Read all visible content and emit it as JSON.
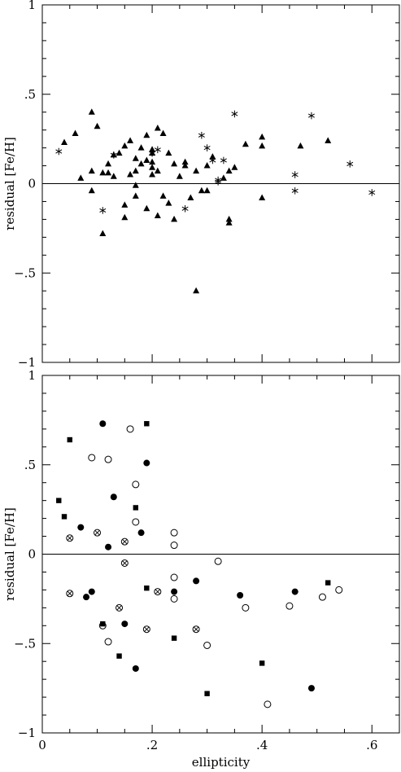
{
  "chart_data": [
    {
      "type": "scatter",
      "panel": "top",
      "xlabel": "",
      "ylabel": "residual [Fe/H]",
      "xlim": [
        0,
        0.65
      ],
      "ylim": [
        -1,
        1
      ],
      "x_ticks": [
        0,
        0.2,
        0.4,
        0.6
      ],
      "y_ticks": [
        -1,
        -0.5,
        0,
        0.5,
        1
      ],
      "x_tick_labels_shown": false,
      "reference_line_y": 0,
      "series": [
        {
          "marker": "filled-triangle",
          "points": [
            [
              0.04,
              0.23
            ],
            [
              0.06,
              0.28
            ],
            [
              0.07,
              0.03
            ],
            [
              0.09,
              0.4
            ],
            [
              0.09,
              0.07
            ],
            [
              0.09,
              -0.04
            ],
            [
              0.1,
              0.32
            ],
            [
              0.11,
              0.06
            ],
            [
              0.11,
              -0.28
            ],
            [
              0.12,
              0.11
            ],
            [
              0.12,
              0.06
            ],
            [
              0.13,
              0.04
            ],
            [
              0.13,
              0.16
            ],
            [
              0.14,
              0.17
            ],
            [
              0.15,
              0.21
            ],
            [
              0.15,
              -0.12
            ],
            [
              0.15,
              -0.19
            ],
            [
              0.16,
              0.24
            ],
            [
              0.16,
              0.05
            ],
            [
              0.17,
              0.14
            ],
            [
              0.17,
              0.07
            ],
            [
              0.17,
              -0.01
            ],
            [
              0.17,
              -0.07
            ],
            [
              0.18,
              0.2
            ],
            [
              0.18,
              0.11
            ],
            [
              0.19,
              0.27
            ],
            [
              0.19,
              0.13
            ],
            [
              0.19,
              -0.14
            ],
            [
              0.2,
              0.17
            ],
            [
              0.2,
              0.12
            ],
            [
              0.2,
              0.09
            ],
            [
              0.2,
              0.05
            ],
            [
              0.2,
              0.19
            ],
            [
              0.21,
              0.31
            ],
            [
              0.21,
              0.07
            ],
            [
              0.21,
              -0.18
            ],
            [
              0.22,
              0.28
            ],
            [
              0.22,
              -0.07
            ],
            [
              0.23,
              0.17
            ],
            [
              0.23,
              -0.11
            ],
            [
              0.24,
              0.11
            ],
            [
              0.24,
              -0.2
            ],
            [
              0.25,
              0.04
            ],
            [
              0.26,
              0.12
            ],
            [
              0.26,
              0.1
            ],
            [
              0.27,
              -0.08
            ],
            [
              0.28,
              0.07
            ],
            [
              0.28,
              -0.6
            ],
            [
              0.29,
              -0.04
            ],
            [
              0.3,
              0.1
            ],
            [
              0.3,
              -0.04
            ],
            [
              0.31,
              0.15
            ],
            [
              0.33,
              0.03
            ],
            [
              0.34,
              0.07
            ],
            [
              0.34,
              -0.2
            ],
            [
              0.34,
              -0.22
            ],
            [
              0.35,
              0.09
            ],
            [
              0.37,
              0.22
            ],
            [
              0.4,
              0.26
            ],
            [
              0.4,
              0.21
            ],
            [
              0.4,
              -0.08
            ],
            [
              0.47,
              0.21
            ],
            [
              0.52,
              0.24
            ]
          ]
        },
        {
          "marker": "asterisk",
          "points": [
            [
              0.03,
              0.18
            ],
            [
              0.11,
              -0.15
            ],
            [
              0.13,
              0.16
            ],
            [
              0.2,
              0.17
            ],
            [
              0.21,
              0.19
            ],
            [
              0.26,
              -0.14
            ],
            [
              0.29,
              0.27
            ],
            [
              0.3,
              0.2
            ],
            [
              0.31,
              0.13
            ],
            [
              0.32,
              0.01
            ],
            [
              0.32,
              0.02
            ],
            [
              0.33,
              0.13
            ],
            [
              0.35,
              0.39
            ],
            [
              0.46,
              0.05
            ],
            [
              0.46,
              -0.04
            ],
            [
              0.49,
              0.38
            ],
            [
              0.56,
              0.11
            ],
            [
              0.6,
              -0.05
            ]
          ]
        }
      ]
    },
    {
      "type": "scatter",
      "panel": "bottom",
      "xlabel": "ellipticity",
      "ylabel": "residual [Fe/H]",
      "xlim": [
        0,
        0.65
      ],
      "ylim": [
        -1,
        1
      ],
      "x_ticks": [
        0,
        0.2,
        0.4,
        0.6
      ],
      "y_ticks": [
        -1,
        -0.5,
        0,
        0.5,
        1
      ],
      "x_tick_labels_shown": true,
      "reference_line_y": 0,
      "series": [
        {
          "marker": "filled-circle",
          "points": [
            [
              0.07,
              0.15
            ],
            [
              0.08,
              -0.24
            ],
            [
              0.09,
              -0.21
            ],
            [
              0.11,
              0.73
            ],
            [
              0.12,
              0.04
            ],
            [
              0.13,
              0.32
            ],
            [
              0.15,
              -0.39
            ],
            [
              0.17,
              -0.64
            ],
            [
              0.18,
              0.12
            ],
            [
              0.19,
              0.51
            ],
            [
              0.24,
              -0.21
            ],
            [
              0.28,
              -0.15
            ],
            [
              0.36,
              -0.23
            ],
            [
              0.46,
              -0.21
            ],
            [
              0.49,
              -0.75
            ]
          ]
        },
        {
          "marker": "open-circle",
          "points": [
            [
              0.09,
              0.54
            ],
            [
              0.11,
              -0.4
            ],
            [
              0.12,
              0.53
            ],
            [
              0.12,
              -0.49
            ],
            [
              0.16,
              0.7
            ],
            [
              0.17,
              0.39
            ],
            [
              0.17,
              0.18
            ],
            [
              0.24,
              0.12
            ],
            [
              0.24,
              0.05
            ],
            [
              0.24,
              -0.13
            ],
            [
              0.24,
              -0.25
            ],
            [
              0.3,
              -0.51
            ],
            [
              0.32,
              -0.04
            ],
            [
              0.37,
              -0.3
            ],
            [
              0.41,
              -0.84
            ],
            [
              0.45,
              -0.29
            ],
            [
              0.51,
              -0.24
            ],
            [
              0.54,
              -0.2
            ]
          ]
        },
        {
          "marker": "filled-square",
          "points": [
            [
              0.03,
              0.3
            ],
            [
              0.04,
              0.21
            ],
            [
              0.05,
              0.64
            ],
            [
              0.11,
              -0.39
            ],
            [
              0.14,
              -0.57
            ],
            [
              0.17,
              0.26
            ],
            [
              0.19,
              0.73
            ],
            [
              0.19,
              -0.19
            ],
            [
              0.24,
              -0.47
            ],
            [
              0.3,
              -0.78
            ],
            [
              0.4,
              -0.61
            ],
            [
              0.52,
              -0.16
            ]
          ]
        },
        {
          "marker": "circle-cross",
          "points": [
            [
              0.05,
              0.09
            ],
            [
              0.05,
              -0.22
            ],
            [
              0.1,
              0.12
            ],
            [
              0.14,
              -0.3
            ],
            [
              0.15,
              0.07
            ],
            [
              0.15,
              -0.05
            ],
            [
              0.19,
              -0.42
            ],
            [
              0.21,
              -0.21
            ],
            [
              0.28,
              -0.42
            ]
          ]
        }
      ]
    }
  ]
}
